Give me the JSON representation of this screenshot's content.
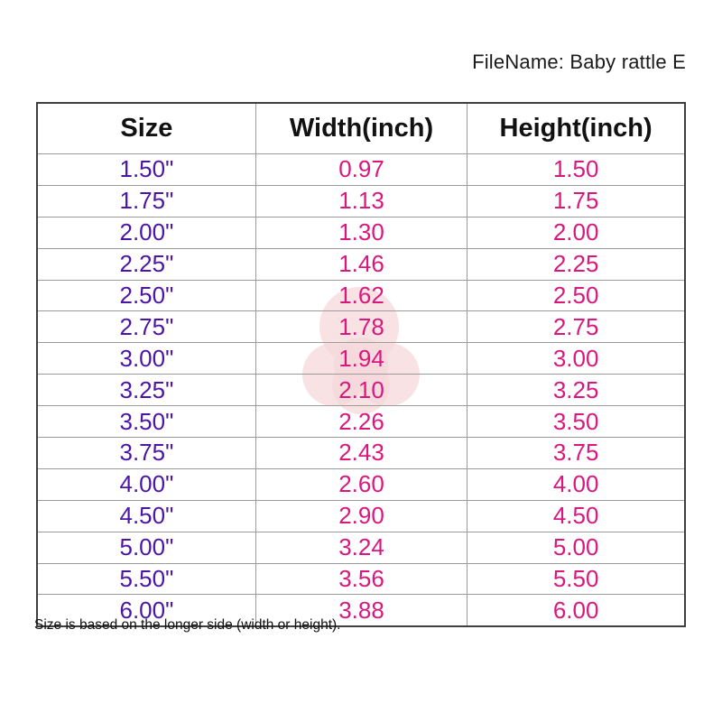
{
  "filename_label": "FileName: Baby rattle E",
  "footnote": "Size is based on the longer side (width or height).",
  "chart_data": {
    "type": "table",
    "title": "FileName: Baby rattle E",
    "columns": [
      "Size",
      "Width(inch)",
      "Height(inch)"
    ],
    "rows": [
      [
        "1.50\"",
        "0.97",
        "1.50"
      ],
      [
        "1.75\"",
        "1.13",
        "1.75"
      ],
      [
        "2.00\"",
        "1.30",
        "2.00"
      ],
      [
        "2.25\"",
        "1.46",
        "2.25"
      ],
      [
        "2.50\"",
        "1.62",
        "2.50"
      ],
      [
        "2.75\"",
        "1.78",
        "2.75"
      ],
      [
        "3.00\"",
        "1.94",
        "3.00"
      ],
      [
        "3.25\"",
        "2.10",
        "3.25"
      ],
      [
        "3.50\"",
        "2.26",
        "3.50"
      ],
      [
        "3.75\"",
        "2.43",
        "3.75"
      ],
      [
        "4.00\"",
        "2.60",
        "4.00"
      ],
      [
        "4.50\"",
        "2.90",
        "4.50"
      ],
      [
        "5.00\"",
        "3.24",
        "5.00"
      ],
      [
        "5.50\"",
        "3.56",
        "5.50"
      ],
      [
        "6.00\"",
        "3.88",
        "6.00"
      ]
    ],
    "footnote": "Size is based on the longer side (width or height)."
  },
  "colors": {
    "size_text": "#4c15a6",
    "value_text": "#d8187f",
    "header_text": "#111111",
    "outer_border": "#3f3f3f",
    "inner_border": "#9b9b9b",
    "watermark": "#f6d8db"
  },
  "icons": {
    "watermark": "baby-rattle-watermark"
  }
}
